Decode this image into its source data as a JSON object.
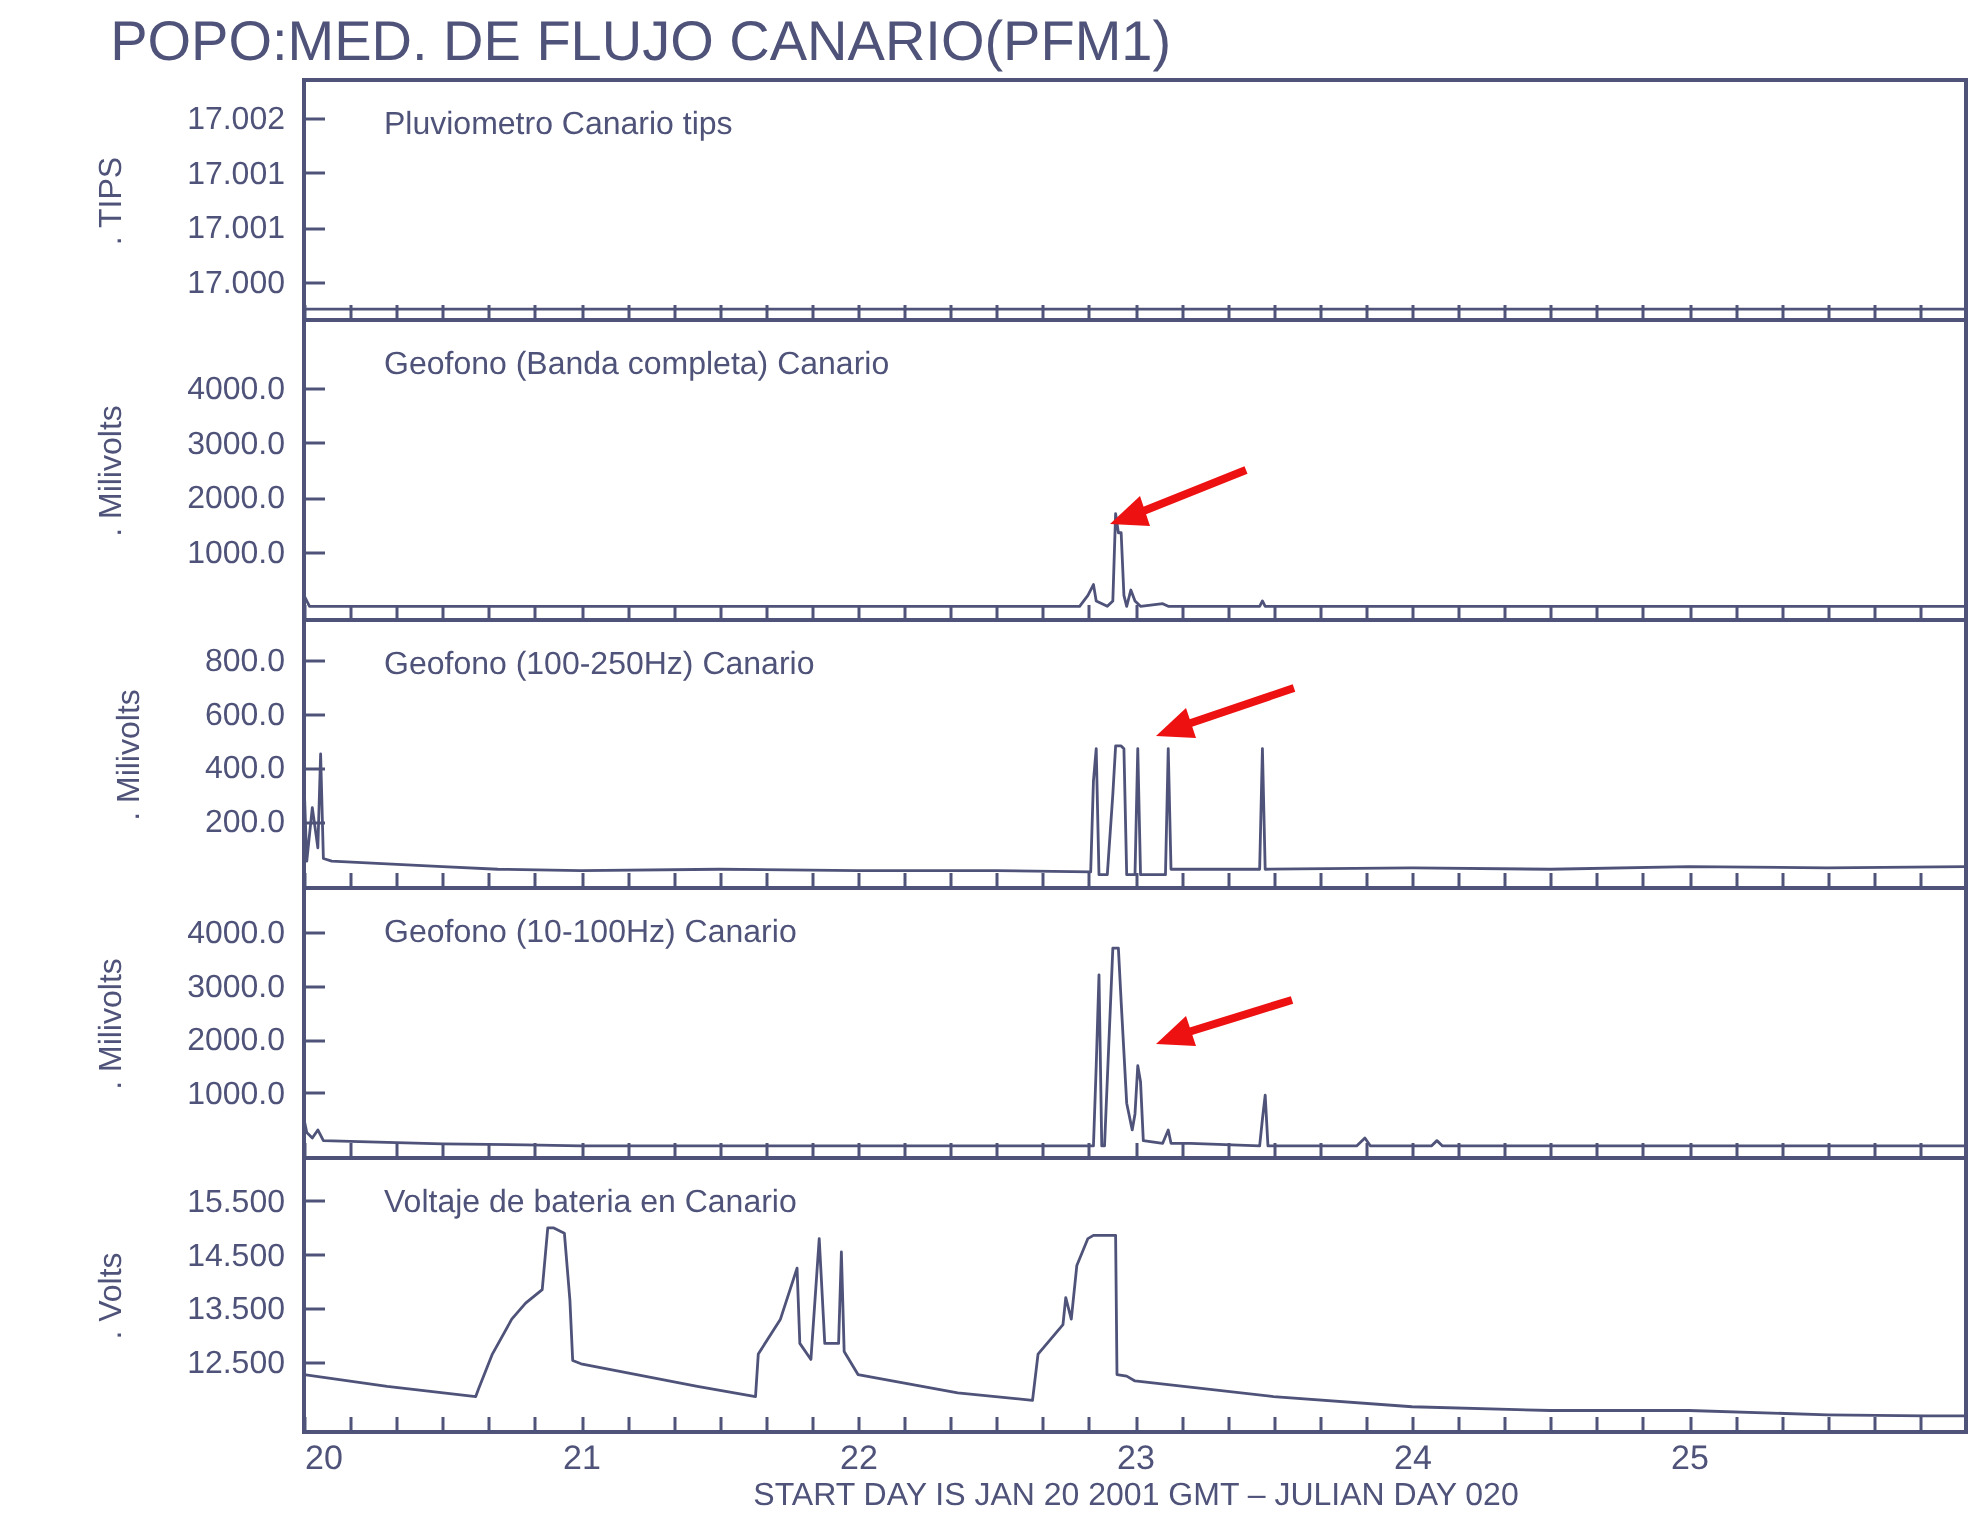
{
  "chart_data": [
    {
      "type": "line",
      "title": "POPO:MED. DE FLUJO CANARIO(PFM1)",
      "ylabel": ". TIPS",
      "annotations": [
        "Pluviometro Canario tips"
      ],
      "tick_labels": "y",
      "xlim": [
        20,
        26
      ],
      "xticks": [
        20,
        {
          "value": 20.1667,
          "label": null
        },
        {
          "value": 20.3333,
          "label": null
        },
        {
          "value": 20.5,
          "label": null
        },
        {
          "value": 20.6667,
          "label": null
        },
        {
          "value": 20.8333,
          "label": null
        },
        21,
        {
          "value": 21.1667,
          "label": null
        },
        {
          "value": 21.3333,
          "label": null
        },
        {
          "value": 21.5,
          "label": null
        },
        {
          "value": 21.6667,
          "label": null
        },
        {
          "value": 21.8333,
          "label": null
        },
        22,
        {
          "value": 22.1667,
          "label": null
        },
        {
          "value": 22.3333,
          "label": null
        },
        {
          "value": 22.5,
          "label": null
        },
        {
          "value": 22.6667,
          "label": null
        },
        {
          "value": 22.8333,
          "label": null
        },
        23,
        {
          "value": 23.1667,
          "label": null
        },
        {
          "value": 23.3333,
          "label": null
        },
        {
          "value": 23.5,
          "label": null
        },
        {
          "value": 23.6667,
          "label": null
        },
        {
          "value": 23.8333,
          "label": null
        },
        24,
        {
          "value": 24.1667,
          "label": null
        },
        {
          "value": 24.3333,
          "label": null
        },
        {
          "value": 24.5,
          "label": null
        },
        {
          "value": 24.6667,
          "label": null
        },
        {
          "value": 24.8333,
          "label": null
        },
        25,
        {
          "value": 25.1667,
          "label": null
        },
        {
          "value": 25.3333,
          "label": null
        },
        {
          "value": 25.5,
          "label": null
        },
        {
          "value": 25.6667,
          "label": null
        },
        {
          "value": 25.8333,
          "label": null
        }
      ],
      "ylim": [
        16.9999,
        17.0021
      ],
      "yticks": [
        {
          "value": 17.00025,
          "label": "17.000"
        },
        {
          "value": 17.00075,
          "label": "17.001"
        },
        {
          "value": 17.00125,
          "label": "17.001"
        },
        {
          "value": 17.00175,
          "label": "17.002"
        }
      ],
      "series": [
        {
          "color": "#4f5379",
          "x": [
            20,
            26
          ],
          "values": [
            17.0,
            17.0
          ]
        }
      ]
    },
    {
      "type": "line",
      "ylabel": ". Milivolts",
      "annotations": [
        "Geofono (Banda completa) Canario"
      ],
      "tick_labels": "y",
      "xlim": [
        20,
        26
      ],
      "xticks": [
        20,
        {
          "value": 20.1667,
          "label": null
        },
        {
          "value": 20.3333,
          "label": null
        },
        {
          "value": 20.5,
          "label": null
        },
        {
          "value": 20.6667,
          "label": null
        },
        {
          "value": 20.8333,
          "label": null
        },
        21,
        {
          "value": 21.1667,
          "label": null
        },
        {
          "value": 21.3333,
          "label": null
        },
        {
          "value": 21.5,
          "label": null
        },
        {
          "value": 21.6667,
          "label": null
        },
        {
          "value": 21.8333,
          "label": null
        },
        22,
        {
          "value": 22.1667,
          "label": null
        },
        {
          "value": 22.3333,
          "label": null
        },
        {
          "value": 22.5,
          "label": null
        },
        {
          "value": 22.6667,
          "label": null
        },
        {
          "value": 22.8333,
          "label": null
        },
        23,
        {
          "value": 23.1667,
          "label": null
        },
        {
          "value": 23.3333,
          "label": null
        },
        {
          "value": 23.5,
          "label": null
        },
        {
          "value": 23.6667,
          "label": null
        },
        {
          "value": 23.8333,
          "label": null
        },
        24,
        {
          "value": 24.1667,
          "label": null
        },
        {
          "value": 24.3333,
          "label": null
        },
        {
          "value": 24.5,
          "label": null
        },
        {
          "value": 24.6667,
          "label": null
        },
        {
          "value": 24.8333,
          "label": null
        },
        25,
        {
          "value": 25.1667,
          "label": null
        },
        {
          "value": 25.3333,
          "label": null
        },
        {
          "value": 25.5,
          "label": null
        },
        {
          "value": 25.6667,
          "label": null
        },
        {
          "value": 25.8333,
          "label": null
        }
      ],
      "ylim": [
        -250,
        5250
      ],
      "yticks": [
        {
          "value": 1000,
          "label": "1000.0"
        },
        {
          "value": 2000,
          "label": "2000.0"
        },
        {
          "value": 3000,
          "label": "3000.0"
        },
        {
          "value": 4000,
          "label": "4000.0"
        }
      ],
      "series": [
        {
          "color": "#4f5379",
          "x": [
            20,
            20.02,
            20.03,
            22.8,
            22.83,
            22.85,
            22.86,
            22.9,
            22.92,
            22.93,
            22.94,
            22.95,
            22.96,
            22.97,
            22.985,
            23.0,
            23.02,
            23.1,
            23.12,
            23.45,
            23.46,
            23.47,
            26
          ],
          "values": [
            200,
            0,
            0,
            0,
            200,
            400,
            100,
            0,
            100,
            1700,
            1350,
            1350,
            200,
            0,
            300,
            100,
            0,
            50,
            0,
            0,
            100,
            0,
            0
          ]
        }
      ]
    },
    {
      "type": "line",
      "ylabel": ". Milivolts",
      "annotations": [
        "Geofono (100-250Hz) Canario"
      ],
      "tick_labels": "y",
      "xlim": [
        20,
        26
      ],
      "xticks": [
        20,
        {
          "value": 20.1667,
          "label": null
        },
        {
          "value": 20.3333,
          "label": null
        },
        {
          "value": 20.5,
          "label": null
        },
        {
          "value": 20.6667,
          "label": null
        },
        {
          "value": 20.8333,
          "label": null
        },
        21,
        {
          "value": 21.1667,
          "label": null
        },
        {
          "value": 21.3333,
          "label": null
        },
        {
          "value": 21.5,
          "label": null
        },
        {
          "value": 21.6667,
          "label": null
        },
        {
          "value": 21.8333,
          "label": null
        },
        22,
        {
          "value": 22.1667,
          "label": null
        },
        {
          "value": 22.3333,
          "label": null
        },
        {
          "value": 22.5,
          "label": null
        },
        {
          "value": 22.6667,
          "label": null
        },
        {
          "value": 22.8333,
          "label": null
        },
        23,
        {
          "value": 23.1667,
          "label": null
        },
        {
          "value": 23.3333,
          "label": null
        },
        {
          "value": 23.5,
          "label": null
        },
        {
          "value": 23.6667,
          "label": null
        },
        {
          "value": 23.8333,
          "label": null
        },
        24,
        {
          "value": 24.1667,
          "label": null
        },
        {
          "value": 24.3333,
          "label": null
        },
        {
          "value": 24.5,
          "label": null
        },
        {
          "value": 24.6667,
          "label": null
        },
        {
          "value": 24.8333,
          "label": null
        },
        25,
        {
          "value": 25.1667,
          "label": null
        },
        {
          "value": 25.3333,
          "label": null
        },
        {
          "value": 25.5,
          "label": null
        },
        {
          "value": 25.6667,
          "label": null
        },
        {
          "value": 25.8333,
          "label": null
        }
      ],
      "ylim": [
        -50,
        950
      ],
      "yticks": [
        {
          "value": 200,
          "label": "200.0"
        },
        {
          "value": 400,
          "label": "400.0"
        },
        {
          "value": 600,
          "label": "600.0"
        },
        {
          "value": 800,
          "label": "800.0"
        }
      ],
      "series": [
        {
          "color": "#4f5379",
          "x": [
            20,
            20.01,
            20.03,
            20.05,
            20.06,
            20.07,
            20.1,
            20.3,
            20.5,
            20.7,
            21.0,
            21.5,
            22.0,
            22.5,
            22.84,
            22.85,
            22.86,
            22.87,
            22.9,
            22.92,
            22.93,
            22.95,
            22.96,
            22.97,
            23.0,
            23.01,
            23.02,
            23.11,
            23.12,
            23.13,
            23.45,
            23.46,
            23.47,
            24.0,
            24.5,
            25.0,
            25.5,
            26.0
          ],
          "values": [
            350,
            50,
            250,
            100,
            450,
            60,
            50,
            40,
            30,
            20,
            15,
            20,
            15,
            15,
            10,
            350,
            470,
            0,
            0,
            300,
            480,
            480,
            470,
            0,
            0,
            470,
            0,
            0,
            470,
            20,
            20,
            470,
            20,
            25,
            20,
            30,
            25,
            30
          ]
        }
      ]
    },
    {
      "type": "line",
      "ylabel": ". Milivolts",
      "annotations": [
        "Geofono (10-100Hz) Canario"
      ],
      "tick_labels": "y",
      "xlim": [
        20,
        26
      ],
      "xticks": [
        20,
        {
          "value": 20.1667,
          "label": null
        },
        {
          "value": 20.3333,
          "label": null
        },
        {
          "value": 20.5,
          "label": null
        },
        {
          "value": 20.6667,
          "label": null
        },
        {
          "value": 20.8333,
          "label": null
        },
        21,
        {
          "value": 21.1667,
          "label": null
        },
        {
          "value": 21.3333,
          "label": null
        },
        {
          "value": 21.5,
          "label": null
        },
        {
          "value": 21.6667,
          "label": null
        },
        {
          "value": 21.8333,
          "label": null
        },
        22,
        {
          "value": 22.1667,
          "label": null
        },
        {
          "value": 22.3333,
          "label": null
        },
        {
          "value": 22.5,
          "label": null
        },
        {
          "value": 22.6667,
          "label": null
        },
        {
          "value": 22.8333,
          "label": null
        },
        23,
        {
          "value": 23.1667,
          "label": null
        },
        {
          "value": 23.3333,
          "label": null
        },
        {
          "value": 23.5,
          "label": null
        },
        {
          "value": 23.6667,
          "label": null
        },
        {
          "value": 23.8333,
          "label": null
        },
        24,
        {
          "value": 24.1667,
          "label": null
        },
        {
          "value": 24.3333,
          "label": null
        },
        {
          "value": 24.5,
          "label": null
        },
        {
          "value": 24.6667,
          "label": null
        },
        {
          "value": 24.8333,
          "label": null
        },
        25,
        {
          "value": 25.1667,
          "label": null
        },
        {
          "value": 25.3333,
          "label": null
        },
        {
          "value": 25.5,
          "label": null
        },
        {
          "value": 25.6667,
          "label": null
        },
        {
          "value": 25.8333,
          "label": null
        }
      ],
      "ylim": [
        -225,
        4825
      ],
      "yticks": [
        {
          "value": 1000,
          "label": "1000.0"
        },
        {
          "value": 2000,
          "label": "2000.0"
        },
        {
          "value": 3000,
          "label": "3000.0"
        },
        {
          "value": 4000,
          "label": "4000.0"
        }
      ],
      "series": [
        {
          "color": "#4f5379",
          "x": [
            20,
            20.01,
            20.03,
            20.05,
            20.07,
            20.2,
            20.5,
            20.8,
            21,
            22.85,
            22.86,
            22.87,
            22.88,
            22.89,
            22.92,
            22.93,
            22.94,
            22.95,
            22.97,
            22.99,
            23.0,
            23.01,
            23.02,
            23.03,
            23.1,
            23.12,
            23.13,
            23.2,
            23.45,
            23.46,
            23.47,
            23.48,
            23.8,
            23.83,
            23.85,
            24.07,
            24.09,
            24.11,
            26
          ],
          "values": [
            500,
            250,
            150,
            300,
            100,
            80,
            40,
            20,
            0,
            0,
            1500,
            3200,
            0,
            0,
            3700,
            3700,
            3700,
            2700,
            800,
            300,
            600,
            1500,
            1200,
            100,
            50,
            300,
            50,
            50,
            0,
            500,
            950,
            0,
            0,
            150,
            0,
            0,
            100,
            0,
            0
          ]
        }
      ]
    },
    {
      "type": "line",
      "ylabel": ". Volts",
      "xlabel": "START DAY IS JAN 20 2001 GMT  – JULIAN DAY 020",
      "annotations": [
        "Voltaje de bateria en Canario"
      ],
      "xlim": [
        20,
        26
      ],
      "xticks": [
        20,
        {
          "value": 20.1667,
          "label": null
        },
        {
          "value": 20.3333,
          "label": null
        },
        {
          "value": 20.5,
          "label": null
        },
        {
          "value": 20.6667,
          "label": null
        },
        {
          "value": 20.8333,
          "label": null
        },
        21,
        {
          "value": 21.1667,
          "label": null
        },
        {
          "value": 21.3333,
          "label": null
        },
        {
          "value": 21.5,
          "label": null
        },
        {
          "value": 21.6667,
          "label": null
        },
        {
          "value": 21.8333,
          "label": null
        },
        22,
        {
          "value": 22.1667,
          "label": null
        },
        {
          "value": 22.3333,
          "label": null
        },
        {
          "value": 22.5,
          "label": null
        },
        {
          "value": 22.6667,
          "label": null
        },
        {
          "value": 22.8333,
          "label": null
        },
        23,
        {
          "value": 23.1667,
          "label": null
        },
        {
          "value": 23.3333,
          "label": null
        },
        {
          "value": 23.5,
          "label": null
        },
        {
          "value": 23.6667,
          "label": null
        },
        {
          "value": 23.8333,
          "label": null
        },
        24,
        {
          "value": 24.1667,
          "label": null
        },
        {
          "value": 24.3333,
          "label": null
        },
        {
          "value": 24.5,
          "label": null
        },
        {
          "value": 24.6667,
          "label": null
        },
        {
          "value": 24.8333,
          "label": null
        },
        25,
        {
          "value": 25.1667,
          "label": null
        },
        {
          "value": 25.3333,
          "label": null
        },
        {
          "value": 25.5,
          "label": null
        },
        {
          "value": 25.6667,
          "label": null
        },
        {
          "value": 25.8333,
          "label": null
        }
      ],
      "ylim": [
        11.2,
        16.3
      ],
      "yticks": [
        {
          "value": 12.5,
          "label": "12.500"
        },
        {
          "value": 13.5,
          "label": "13.500"
        },
        {
          "value": 14.5,
          "label": "14.500"
        },
        {
          "value": 15.5,
          "label": "15.500"
        }
      ],
      "series": [
        {
          "color": "#4f5379",
          "x": [
            20,
            20.3,
            20.62,
            20.63,
            20.68,
            20.75,
            20.8,
            20.86,
            20.88,
            20.9,
            20.94,
            20.96,
            20.97,
            21.0,
            21.42,
            21.63,
            21.64,
            21.72,
            21.78,
            21.79,
            21.83,
            21.86,
            21.88,
            21.93,
            21.94,
            21.95,
            22.0,
            22.36,
            22.63,
            22.65,
            22.74,
            22.75,
            22.77,
            22.79,
            22.83,
            22.85,
            22.93,
            22.935,
            22.97,
            23.0,
            23.5,
            24.0,
            24.5,
            25.0,
            25.5,
            25.85,
            26
          ],
          "values": [
            12.27,
            12.05,
            11.86,
            12.0,
            12.65,
            13.3,
            13.6,
            13.85,
            15.0,
            15.0,
            14.9,
            13.65,
            12.53,
            12.47,
            12.05,
            11.86,
            12.65,
            13.3,
            14.25,
            12.85,
            12.55,
            14.8,
            12.85,
            12.85,
            14.55,
            12.7,
            12.27,
            11.93,
            11.79,
            12.65,
            13.2,
            13.7,
            13.3,
            14.3,
            14.8,
            14.86,
            14.86,
            12.27,
            12.24,
            12.15,
            11.86,
            11.67,
            11.6,
            11.6,
            11.52,
            11.5,
            11.5
          ]
        }
      ]
    }
  ]
}
